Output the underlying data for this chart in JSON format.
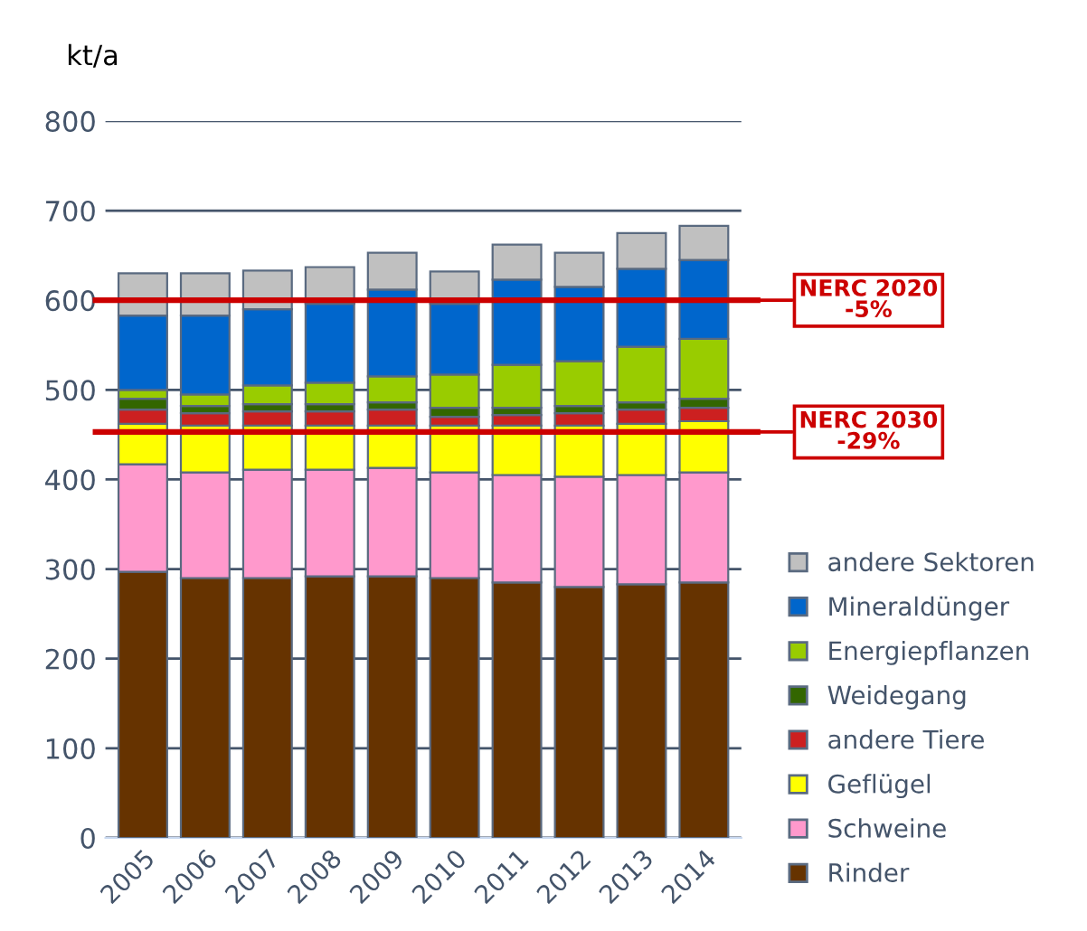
{
  "chart_data": {
    "type": "bar",
    "stacked": true,
    "ylabel": "kt/a",
    "categories": [
      "2005",
      "2006",
      "2007",
      "2008",
      "2009",
      "2010",
      "2011",
      "2012",
      "2013",
      "2014"
    ],
    "series": [
      {
        "name": "Rinder",
        "color": "#663300",
        "values": [
          297,
          290,
          290,
          292,
          292,
          290,
          285,
          280,
          283,
          285
        ]
      },
      {
        "name": "Schweine",
        "color": "#ff99cc",
        "values": [
          120,
          118,
          121,
          119,
          121,
          118,
          120,
          123,
          122,
          123
        ]
      },
      {
        "name": "Geflügel",
        "color": "#ffff00",
        "values": [
          45,
          52,
          49,
          49,
          47,
          52,
          55,
          57,
          57,
          57
        ]
      },
      {
        "name": "andere Tiere",
        "color": "#cc2020",
        "values": [
          16,
          14,
          16,
          16,
          18,
          10,
          12,
          14,
          16,
          15
        ]
      },
      {
        "name": "Weidegang",
        "color": "#336600",
        "values": [
          12,
          8,
          8,
          8,
          8,
          10,
          8,
          8,
          8,
          10
        ]
      },
      {
        "name": "Energiepflanzen",
        "color": "#99cc00",
        "values": [
          10,
          13,
          21,
          24,
          29,
          37,
          48,
          50,
          62,
          67
        ]
      },
      {
        "name": "Mineraldünger",
        "color": "#0066cc",
        "values": [
          83,
          88,
          85,
          88,
          97,
          79,
          95,
          83,
          87,
          88
        ]
      },
      {
        "name": "andere Sektoren",
        "color": "#c0c0c0",
        "values": [
          47,
          47,
          43,
          41,
          41,
          36,
          39,
          38,
          40,
          38
        ]
      }
    ],
    "ylim": [
      0,
      800
    ],
    "yticks": [
      0,
      100,
      200,
      300,
      400,
      500,
      600,
      700,
      800
    ],
    "grid": "y",
    "legend": "right",
    "ref_lines": [
      {
        "axis": "y",
        "value": 600,
        "label": "NERC 2020\n-5%",
        "color": "#cc0000"
      },
      {
        "axis": "y",
        "value": 453,
        "label": "NERC 2030\n-29%",
        "color": "#cc0000"
      }
    ]
  }
}
